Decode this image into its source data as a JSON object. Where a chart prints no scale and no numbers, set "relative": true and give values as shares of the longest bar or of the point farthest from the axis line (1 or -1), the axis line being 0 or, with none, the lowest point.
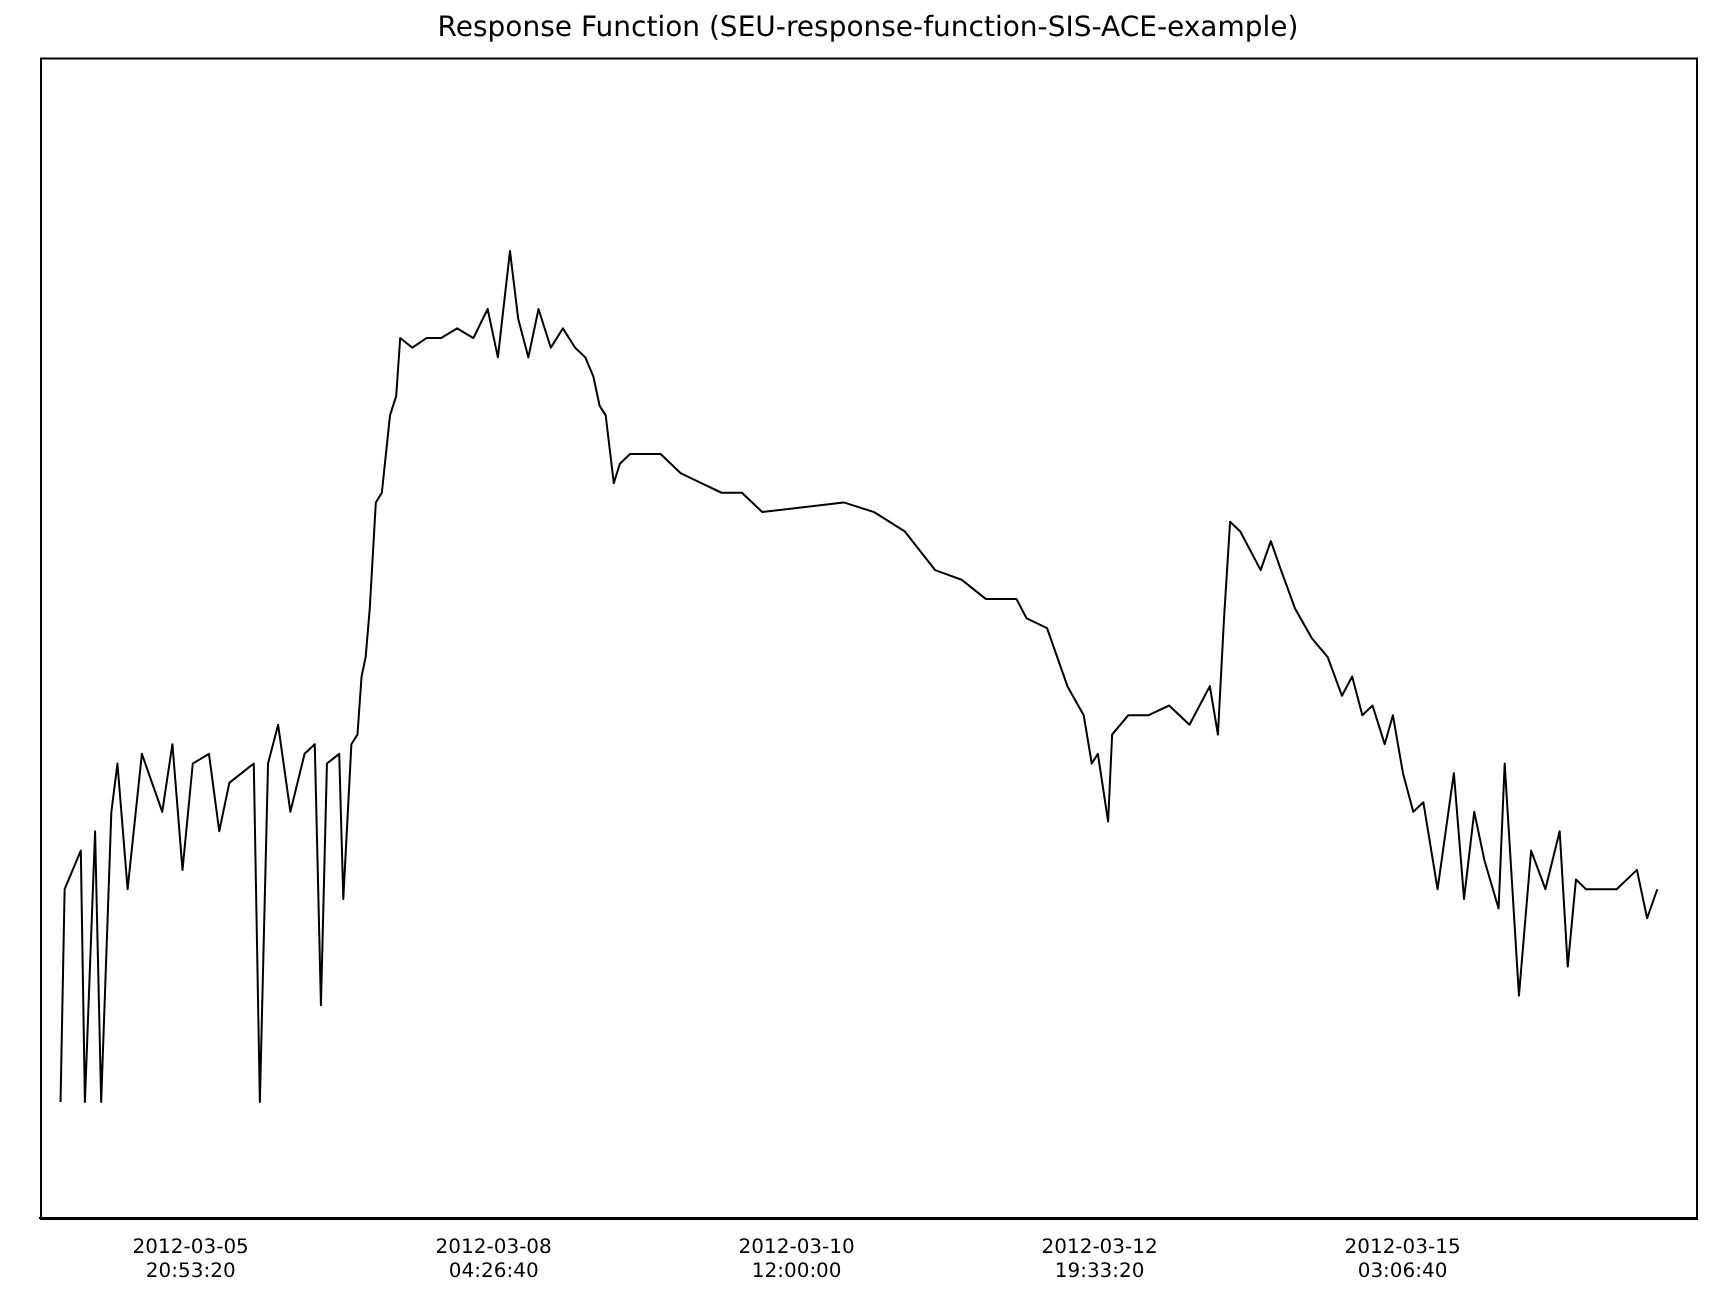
{
  "chart_data": {
    "type": "line",
    "title": "Response Function (SEU-response-function-SIS-ACE-example)",
    "relative": true,
    "grid": false,
    "legend": false,
    "marker": "none",
    "line_style": "solid",
    "xlim": [
      "2012-03-04T17:15",
      "2012-03-17T08:55"
    ],
    "xticks": [
      {
        "value": "2012-03-05T20:53:20",
        "label": "2012-03-05\n20:53:20"
      },
      {
        "value": "2012-03-08T04:26:40",
        "label": "2012-03-08\n04:26:40"
      },
      {
        "value": "2012-03-10T12:00:00",
        "label": "2012-03-10\n12:00:00"
      },
      {
        "value": "2012-03-12T19:33:20",
        "label": "2012-03-12\n19:33:20"
      },
      {
        "value": "2012-03-15T03:06:40",
        "label": "2012-03-15\n03:06:40"
      }
    ],
    "x": [
      "2012-03-04T21:01",
      "2012-03-04T21:46",
      "2012-03-05T00:44",
      "2012-03-05T01:29",
      "2012-03-05T03:21",
      "2012-03-05T04:28",
      "2012-03-05T06:20",
      "2012-03-05T07:27",
      "2012-03-05T09:19",
      "2012-03-05T11:56",
      "2012-03-05T15:40",
      "2012-03-05T17:32",
      "2012-03-05T19:23",
      "2012-03-05T21:16",
      "2012-03-06T00:14",
      "2012-03-06T02:07",
      "2012-03-06T03:58",
      "2012-03-06T08:27",
      "2012-03-06T09:34",
      "2012-03-06T11:04",
      "2012-03-06T12:55",
      "2012-03-06T15:10",
      "2012-03-06T17:46",
      "2012-03-06T19:38",
      "2012-03-06T20:46",
      "2012-03-06T21:52",
      "2012-03-07T00:07",
      "2012-03-07T00:52",
      "2012-03-07T02:21",
      "2012-03-07T03:28",
      "2012-03-07T04:13",
      "2012-03-07T04:58",
      "2012-03-07T05:43",
      "2012-03-07T06:50",
      "2012-03-07T07:56",
      "2012-03-07T09:26",
      "2012-03-07T10:34",
      "2012-03-07T11:18",
      "2012-03-07T13:32",
      "2012-03-07T16:09",
      "2012-03-07T18:46",
      "2012-03-07T21:45",
      "2012-03-08T00:44",
      "2012-03-08T03:20",
      "2012-03-08T05:13",
      "2012-03-08T07:26",
      "2012-03-08T08:56",
      "2012-03-08T10:48",
      "2012-03-08T12:40",
      "2012-03-08T14:55",
      "2012-03-08T17:08",
      "2012-03-08T19:23",
      "2012-03-08T21:15",
      "2012-03-08T22:44",
      "2012-03-08T23:52",
      "2012-03-09T00:59",
      "2012-03-09T02:28",
      "2012-03-09T03:35",
      "2012-03-09T05:27",
      "2012-03-09T11:03",
      "2012-03-09T14:47",
      "2012-03-09T18:31",
      "2012-03-09T22:14",
      "2012-03-10T01:58",
      "2012-03-10T05:42",
      "2012-03-10T20:37",
      "2012-03-11T02:13",
      "2012-03-11T07:49",
      "2012-03-11T13:24",
      "2012-03-11T18:15",
      "2012-03-11T22:44",
      "2012-03-12T04:19",
      "2012-03-12T06:11",
      "2012-03-12T09:55",
      "2012-03-12T13:39",
      "2012-03-12T16:38",
      "2012-03-12T18:07",
      "2012-03-12T19:14",
      "2012-03-12T21:07",
      "2012-03-12T21:51",
      "2012-03-13T00:50",
      "2012-03-13T04:34",
      "2012-03-13T08:18",
      "2012-03-13T12:02",
      "2012-03-13T15:46",
      "2012-03-13T17:15",
      "2012-03-13T18:22",
      "2012-03-13T19:29",
      "2012-03-13T21:21",
      "2012-03-13T23:13",
      "2012-03-14T01:05",
      "2012-03-14T02:57",
      "2012-03-14T04:49",
      "2012-03-14T07:25",
      "2012-03-14T10:25",
      "2012-03-14T13:23",
      "2012-03-14T16:00",
      "2012-03-14T17:52",
      "2012-03-14T19:44",
      "2012-03-14T21:36",
      "2012-03-14T23:50",
      "2012-03-15T01:20",
      "2012-03-15T03:11",
      "2012-03-15T05:04",
      "2012-03-15T06:55",
      "2012-03-15T09:32",
      "2012-03-15T11:46",
      "2012-03-15T12:31",
      "2012-03-15T14:23",
      "2012-03-15T16:15",
      "2012-03-15T18:07",
      "2012-03-15T20:43",
      "2012-03-15T21:50",
      "2012-03-16T00:27",
      "2012-03-16T02:41",
      "2012-03-16T05:18",
      "2012-03-16T07:55",
      "2012-03-16T09:24",
      "2012-03-16T10:54",
      "2012-03-16T12:46",
      "2012-03-16T14:38",
      "2012-03-16T18:22",
      "2012-03-16T22:05",
      "2012-03-16T23:57",
      "2012-03-17T01:49"
    ],
    "series": [
      {
        "color": "#000000",
        "values": [
          0.12,
          0.34,
          0.38,
          0.12,
          0.4,
          0.12,
          0.42,
          0.47,
          0.34,
          0.48,
          0.42,
          0.49,
          0.36,
          0.47,
          0.48,
          0.4,
          0.45,
          0.47,
          0.12,
          0.47,
          0.51,
          0.42,
          0.48,
          0.49,
          0.22,
          0.47,
          0.48,
          0.33,
          0.49,
          0.5,
          0.56,
          0.58,
          0.63,
          0.74,
          0.75,
          0.83,
          0.85,
          0.91,
          0.9,
          0.91,
          0.91,
          0.92,
          0.91,
          0.94,
          0.89,
          1,
          0.93,
          0.89,
          0.94,
          0.9,
          0.92,
          0.9,
          0.89,
          0.87,
          0.84,
          0.83,
          0.76,
          0.78,
          0.79,
          0.79,
          0.77,
          0.76,
          0.75,
          0.75,
          0.73,
          0.74,
          0.73,
          0.71,
          0.67,
          0.66,
          0.64,
          0.64,
          0.62,
          0.61,
          0.55,
          0.52,
          0.47,
          0.48,
          0.41,
          0.5,
          0.52,
          0.52,
          0.53,
          0.51,
          0.55,
          0.5,
          0.62,
          0.72,
          0.71,
          0.69,
          0.67,
          0.7,
          0.67,
          0.63,
          0.6,
          0.58,
          0.54,
          0.56,
          0.52,
          0.53,
          0.49,
          0.52,
          0.46,
          0.42,
          0.43,
          0.34,
          0.43,
          0.46,
          0.33,
          0.42,
          0.37,
          0.32,
          0.47,
          0.23,
          0.38,
          0.34,
          0.4,
          0.26,
          0.35,
          0.34,
          0.34,
          0.34,
          0.36,
          0.31,
          0.34
        ]
      }
    ]
  }
}
